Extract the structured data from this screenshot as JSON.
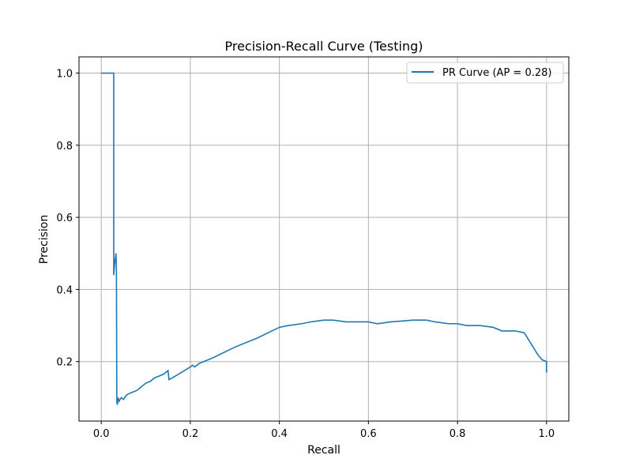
{
  "chart_data": {
    "type": "line",
    "title": "Precision-Recall Curve (Testing)",
    "xlabel": "Recall",
    "ylabel": "Precision",
    "xlim": [
      -0.05,
      1.05
    ],
    "ylim": [
      0.035,
      1.045
    ],
    "xticks": [
      0.0,
      0.2,
      0.4,
      0.6,
      0.8,
      1.0
    ],
    "xtick_labels": [
      "0.0",
      "0.2",
      "0.4",
      "0.6",
      "0.8",
      "1.0"
    ],
    "yticks": [
      0.2,
      0.4,
      0.6,
      0.8,
      1.0
    ],
    "ytick_labels": [
      "0.2",
      "0.4",
      "0.6",
      "0.8",
      "1.0"
    ],
    "grid": true,
    "legend_position": "top-right",
    "series": [
      {
        "name": "PR Curve (AP = 0.28)",
        "color": "#1f77b4",
        "x": [
          0.0,
          0.028,
          0.028,
          0.03,
          0.033,
          0.034,
          0.035,
          0.036,
          0.038,
          0.04,
          0.045,
          0.05,
          0.055,
          0.06,
          0.07,
          0.08,
          0.09,
          0.1,
          0.11,
          0.12,
          0.13,
          0.14,
          0.15,
          0.152,
          0.16,
          0.18,
          0.2,
          0.205,
          0.21,
          0.22,
          0.25,
          0.3,
          0.35,
          0.4,
          0.42,
          0.45,
          0.47,
          0.5,
          0.52,
          0.55,
          0.6,
          0.62,
          0.65,
          0.7,
          0.73,
          0.75,
          0.78,
          0.8,
          0.82,
          0.85,
          0.88,
          0.9,
          0.93,
          0.95,
          0.96,
          0.97,
          0.98,
          0.99,
          1.0,
          1.0
        ],
        "y": [
          1.0,
          1.0,
          0.44,
          0.47,
          0.5,
          0.46,
          0.09,
          0.08,
          0.1,
          0.09,
          0.1,
          0.095,
          0.105,
          0.11,
          0.115,
          0.12,
          0.13,
          0.14,
          0.145,
          0.155,
          0.16,
          0.165,
          0.175,
          0.15,
          0.155,
          0.17,
          0.185,
          0.19,
          0.185,
          0.195,
          0.21,
          0.24,
          0.265,
          0.295,
          0.3,
          0.305,
          0.31,
          0.315,
          0.315,
          0.31,
          0.31,
          0.305,
          0.31,
          0.315,
          0.315,
          0.31,
          0.305,
          0.305,
          0.3,
          0.3,
          0.295,
          0.285,
          0.285,
          0.28,
          0.26,
          0.24,
          0.22,
          0.205,
          0.2,
          0.17
        ]
      }
    ]
  }
}
